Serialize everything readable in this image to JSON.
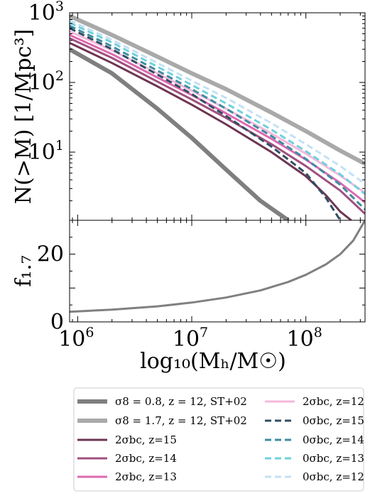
{
  "chart_data": [
    {
      "type": "line",
      "panel": "top",
      "xscale": "log",
      "yscale": "log",
      "xlim": [
        850000,
        330000000
      ],
      "ylim": [
        1.05,
        1000
      ],
      "ylabel": "N(>M) [1/Mpc³]",
      "yticks": [
        {
          "label": "10",
          "sup": "3",
          "value": 1000
        },
        {
          "label": "10",
          "sup": "2",
          "value": 100
        },
        {
          "label": "10",
          "sup": "1",
          "value": 10
        }
      ],
      "series": [
        {
          "name": "σ8 = 0.8, z = 12, ST+02",
          "color": "#7f7f7f",
          "width": 6,
          "dash": "",
          "x": [
            850000,
            2000000,
            5000000,
            10000000,
            20000000,
            40000000,
            70000000
          ],
          "y": [
            300,
            135,
            42,
            16,
            5.6,
            2.0,
            1.05
          ]
        },
        {
          "name": "σ8 = 1.7, z = 12, ST+02",
          "color": "#a9a9a9",
          "width": 6,
          "dash": "",
          "x": [
            850000,
            2000000,
            5000000,
            10000000,
            20000000,
            50000000,
            100000000,
            200000000,
            330000000
          ],
          "y": [
            900,
            480,
            235,
            135,
            80,
            37,
            20,
            10.5,
            6.8
          ]
        },
        {
          "name": "2σbc, z=15",
          "color": "#6e3552",
          "width": 3,
          "dash": "",
          "x": [
            850000,
            2000000,
            5000000,
            10000000,
            20000000,
            50000000,
            100000000,
            150000000,
            200000000,
            250000000
          ],
          "y": [
            370,
            190,
            88,
            48,
            25,
            10,
            4.5,
            2.4,
            1.4,
            1.05
          ]
        },
        {
          "name": "2σbc, z=14",
          "color": "#a0507f",
          "width": 3,
          "dash": "",
          "x": [
            850000,
            2000000,
            5000000,
            10000000,
            20000000,
            50000000,
            100000000,
            200000000,
            330000000
          ],
          "y": [
            430,
            225,
            103,
            57,
            31,
            13,
            6.3,
            2.8,
            1.3
          ]
        },
        {
          "name": "2σbc, z=13",
          "color": "#dd69b0",
          "width": 3,
          "dash": "",
          "x": [
            850000,
            2000000,
            5000000,
            10000000,
            20000000,
            50000000,
            100000000,
            200000000,
            330000000
          ],
          "y": [
            480,
            255,
            118,
            66,
            36,
            15.5,
            7.8,
            3.6,
            1.9
          ]
        },
        {
          "name": "2σbc, z=12",
          "color": "#f5b8da",
          "width": 3,
          "dash": "",
          "x": [
            850000,
            2000000,
            5000000,
            10000000,
            20000000,
            50000000,
            100000000,
            200000000,
            330000000
          ],
          "y": [
            540,
            290,
            135,
            76,
            42,
            18.5,
            9.5,
            4.6,
            2.6
          ]
        },
        {
          "name": "0σbc, z=15",
          "color": "#2e4f63",
          "width": 3,
          "dash": "9,5",
          "x": [
            850000,
            2000000,
            5000000,
            10000000,
            20000000,
            50000000,
            100000000,
            150000000,
            200000000
          ],
          "y": [
            600,
            300,
            130,
            68,
            33,
            12,
            5,
            2.2,
            1.05
          ]
        },
        {
          "name": "0σbc, z=14",
          "color": "#3e8ca0",
          "width": 3,
          "dash": "9,5",
          "x": [
            850000,
            2000000,
            5000000,
            10000000,
            20000000,
            50000000,
            100000000,
            200000000,
            330000000
          ],
          "y": [
            650,
            330,
            148,
            80,
            42,
            17,
            8,
            3.4,
            1.5
          ]
        },
        {
          "name": "0σbc, z=13",
          "color": "#6fd0dc",
          "width": 3,
          "dash": "9,5",
          "x": [
            850000,
            2000000,
            5000000,
            10000000,
            20000000,
            50000000,
            100000000,
            200000000,
            330000000
          ],
          "y": [
            720,
            375,
            168,
            92,
            50,
            21,
            10.3,
            4.8,
            2.5
          ]
        },
        {
          "name": "0σbc, z=12",
          "color": "#c3e1f3",
          "width": 3,
          "dash": "9,5",
          "x": [
            850000,
            2000000,
            5000000,
            10000000,
            20000000,
            50000000,
            100000000,
            200000000,
            330000000
          ],
          "y": [
            780,
            410,
            190,
            106,
            60,
            26,
            13,
            6.3,
            3.5
          ]
        }
      ]
    },
    {
      "type": "line",
      "panel": "bottom",
      "xscale": "log",
      "yscale": "linear",
      "xlim": [
        850000,
        330000000
      ],
      "ylim": [
        0,
        30
      ],
      "xlabel": "log₁₀(Mₕ/M☉)",
      "ylabel": "f₁.₇",
      "yticks": [
        {
          "label": "0",
          "value": 0
        },
        {
          "label": "20",
          "value": 20
        }
      ],
      "xticks": [
        {
          "label": "10",
          "sup": "6",
          "value": 1000000
        },
        {
          "label": "10",
          "sup": "7",
          "value": 10000000
        },
        {
          "label": "10",
          "sup": "8",
          "value": 100000000
        }
      ],
      "series": [
        {
          "name": "",
          "color": "#808080",
          "width": 3,
          "dash": "",
          "x": [
            850000,
            2000000,
            5000000,
            10000000,
            20000000,
            40000000,
            70000000,
            100000000,
            150000000,
            200000000,
            260000000,
            330000000
          ],
          "y": [
            3.0,
            3.6,
            4.6,
            5.7,
            7.2,
            9.3,
            11.8,
            13.9,
            17.0,
            20.0,
            24.0,
            30.0
          ]
        }
      ]
    }
  ],
  "legend": {
    "entries": [
      {
        "text": "σ8 = 0.8, z = 12, ST+02",
        "color": "#7f7f7f",
        "width": 6,
        "dash": ""
      },
      {
        "text": "σ8 = 1.7, z = 12, ST+02",
        "color": "#a9a9a9",
        "width": 6,
        "dash": ""
      },
      {
        "text": "2σbc, z=15",
        "color": "#6e3552",
        "width": 3,
        "dash": ""
      },
      {
        "text": "2σbc, z=14",
        "color": "#a0507f",
        "width": 3,
        "dash": ""
      },
      {
        "text": "2σbc, z=13",
        "color": "#dd69b0",
        "width": 3,
        "dash": ""
      },
      {
        "text": "2σbc, z=12",
        "color": "#f5b8da",
        "width": 3,
        "dash": ""
      },
      {
        "text": "0σbc, z=15",
        "color": "#2e4f63",
        "width": 3,
        "dash": "9,5"
      },
      {
        "text": "0σbc, z=14",
        "color": "#3e8ca0",
        "width": 3,
        "dash": "9,5"
      },
      {
        "text": "0σbc, z=13",
        "color": "#6fd0dc",
        "width": 3,
        "dash": "9,5"
      },
      {
        "text": "0σbc, z=12",
        "color": "#c3e1f3",
        "width": 3,
        "dash": "9,5"
      }
    ]
  }
}
